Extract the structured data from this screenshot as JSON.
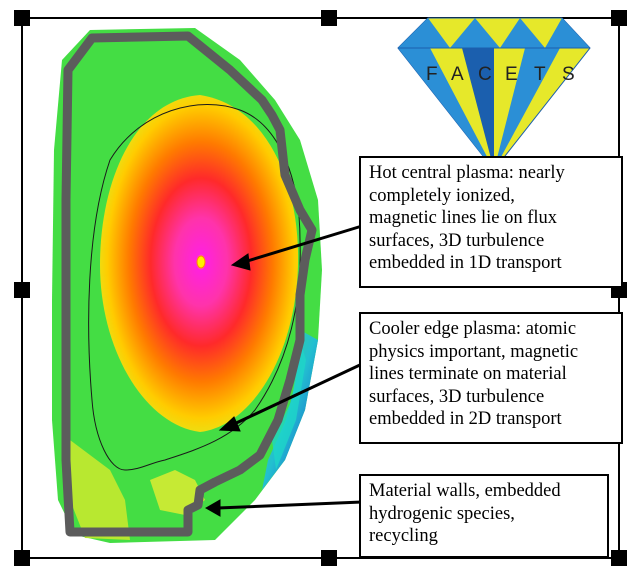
{
  "logo": {
    "letters": [
      "F",
      "A",
      "C",
      "E",
      "T",
      "S"
    ],
    "colors": {
      "yellow": "#e6e82a",
      "blue": "#2b8fd6",
      "dark_blue": "#1b5fae"
    }
  },
  "callouts": {
    "hot_plasma": {
      "lines": [
        "Hot central plasma: nearly",
        "completely ionized,",
        "magnetic lines lie on flux",
        "surfaces, 3D turbulence",
        "embedded in 1D transport"
      ]
    },
    "edge_plasma": {
      "lines": [
        "Cooler edge plasma: atomic",
        "physics important, magnetic",
        "lines terminate on material",
        "surfaces, 3D turbulence",
        "embedded in 2D transport"
      ]
    },
    "walls": {
      "lines": [
        "Material walls, embedded",
        "hydrogenic species,",
        "recycling"
      ]
    }
  },
  "colors": {
    "frame": "#000000",
    "wall": "#5c5c5c",
    "plasma_edge": "#33dd44",
    "plasma_core": "#ff00cc",
    "separatrix": "#1a1a1a",
    "arrow": "#000000"
  }
}
